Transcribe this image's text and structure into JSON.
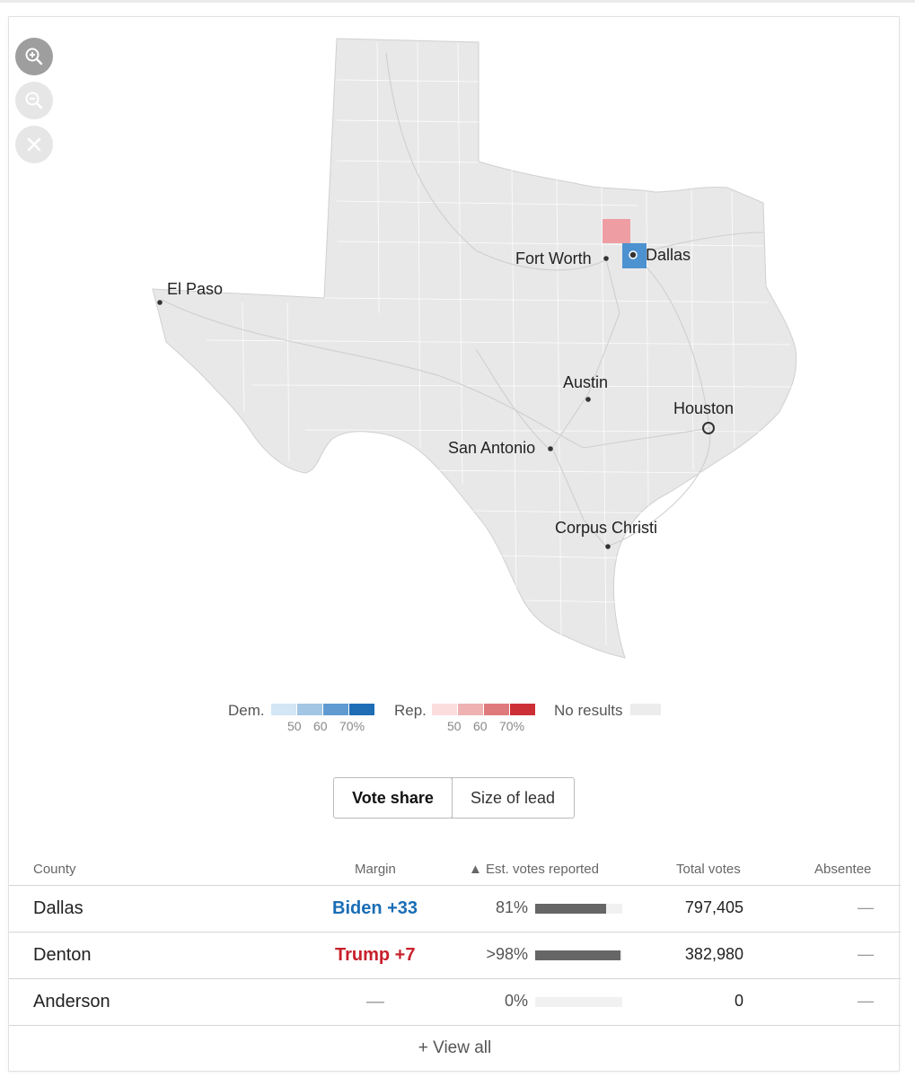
{
  "map": {
    "cities": [
      {
        "name": "El Paso",
        "dot": "dot"
      },
      {
        "name": "Fort Worth",
        "dot": "dot"
      },
      {
        "name": "Dallas",
        "dot": "dot"
      },
      {
        "name": "Austin",
        "dot": "dot"
      },
      {
        "name": "Houston",
        "dot": "ring"
      },
      {
        "name": "San Antonio",
        "dot": "dot"
      },
      {
        "name": "Corpus Christi",
        "dot": "dot"
      }
    ],
    "counties_shaded": [
      {
        "county": "Denton",
        "party": "Rep.",
        "color": "#ee9ea3"
      },
      {
        "county": "Dallas",
        "party": "Dem.",
        "color": "#4d92d0"
      }
    ],
    "base_color": "#e8e8e8"
  },
  "zoom_controls": {
    "zoom_in": "zoom-in-icon",
    "zoom_out": "zoom-out-icon",
    "reset": "close-icon"
  },
  "legend": {
    "dem_label": "Dem.",
    "rep_label": "Rep.",
    "no_results_label": "No results",
    "ticks": [
      "50",
      "60",
      "70%"
    ],
    "dem_colors": [
      "#d3e6f6",
      "#a2c6e4",
      "#5f9bd1",
      "#1f6db5"
    ],
    "rep_colors": [
      "#fbdddd",
      "#eeb2b3",
      "#df7a7c",
      "#cc2f36"
    ],
    "no_results_color": "#ececec"
  },
  "toggle": {
    "options": [
      "Vote share",
      "Size of lead"
    ],
    "selected": "Vote share"
  },
  "table": {
    "headers": {
      "county": "County",
      "margin": "Margin",
      "reported": "▲ Est. votes reported",
      "total": "Total votes",
      "absentee": "Absentee"
    },
    "rows": [
      {
        "county": "Dallas",
        "margin": "Biden +33",
        "margin_color": "#1a6db5",
        "reported": "81%",
        "reported_value": 0.81,
        "total": "797,405",
        "absentee": "—"
      },
      {
        "county": "Denton",
        "margin": "Trump +7",
        "margin_color": "#c8202c",
        "reported": ">98%",
        "reported_value": 0.98,
        "total": "382,980",
        "absentee": "—"
      },
      {
        "county": "Anderson",
        "margin": "—",
        "margin_color": "#999999",
        "reported": "0%",
        "reported_value": 0,
        "total": "0",
        "absentee": "—"
      }
    ],
    "view_all": "+ View all"
  }
}
